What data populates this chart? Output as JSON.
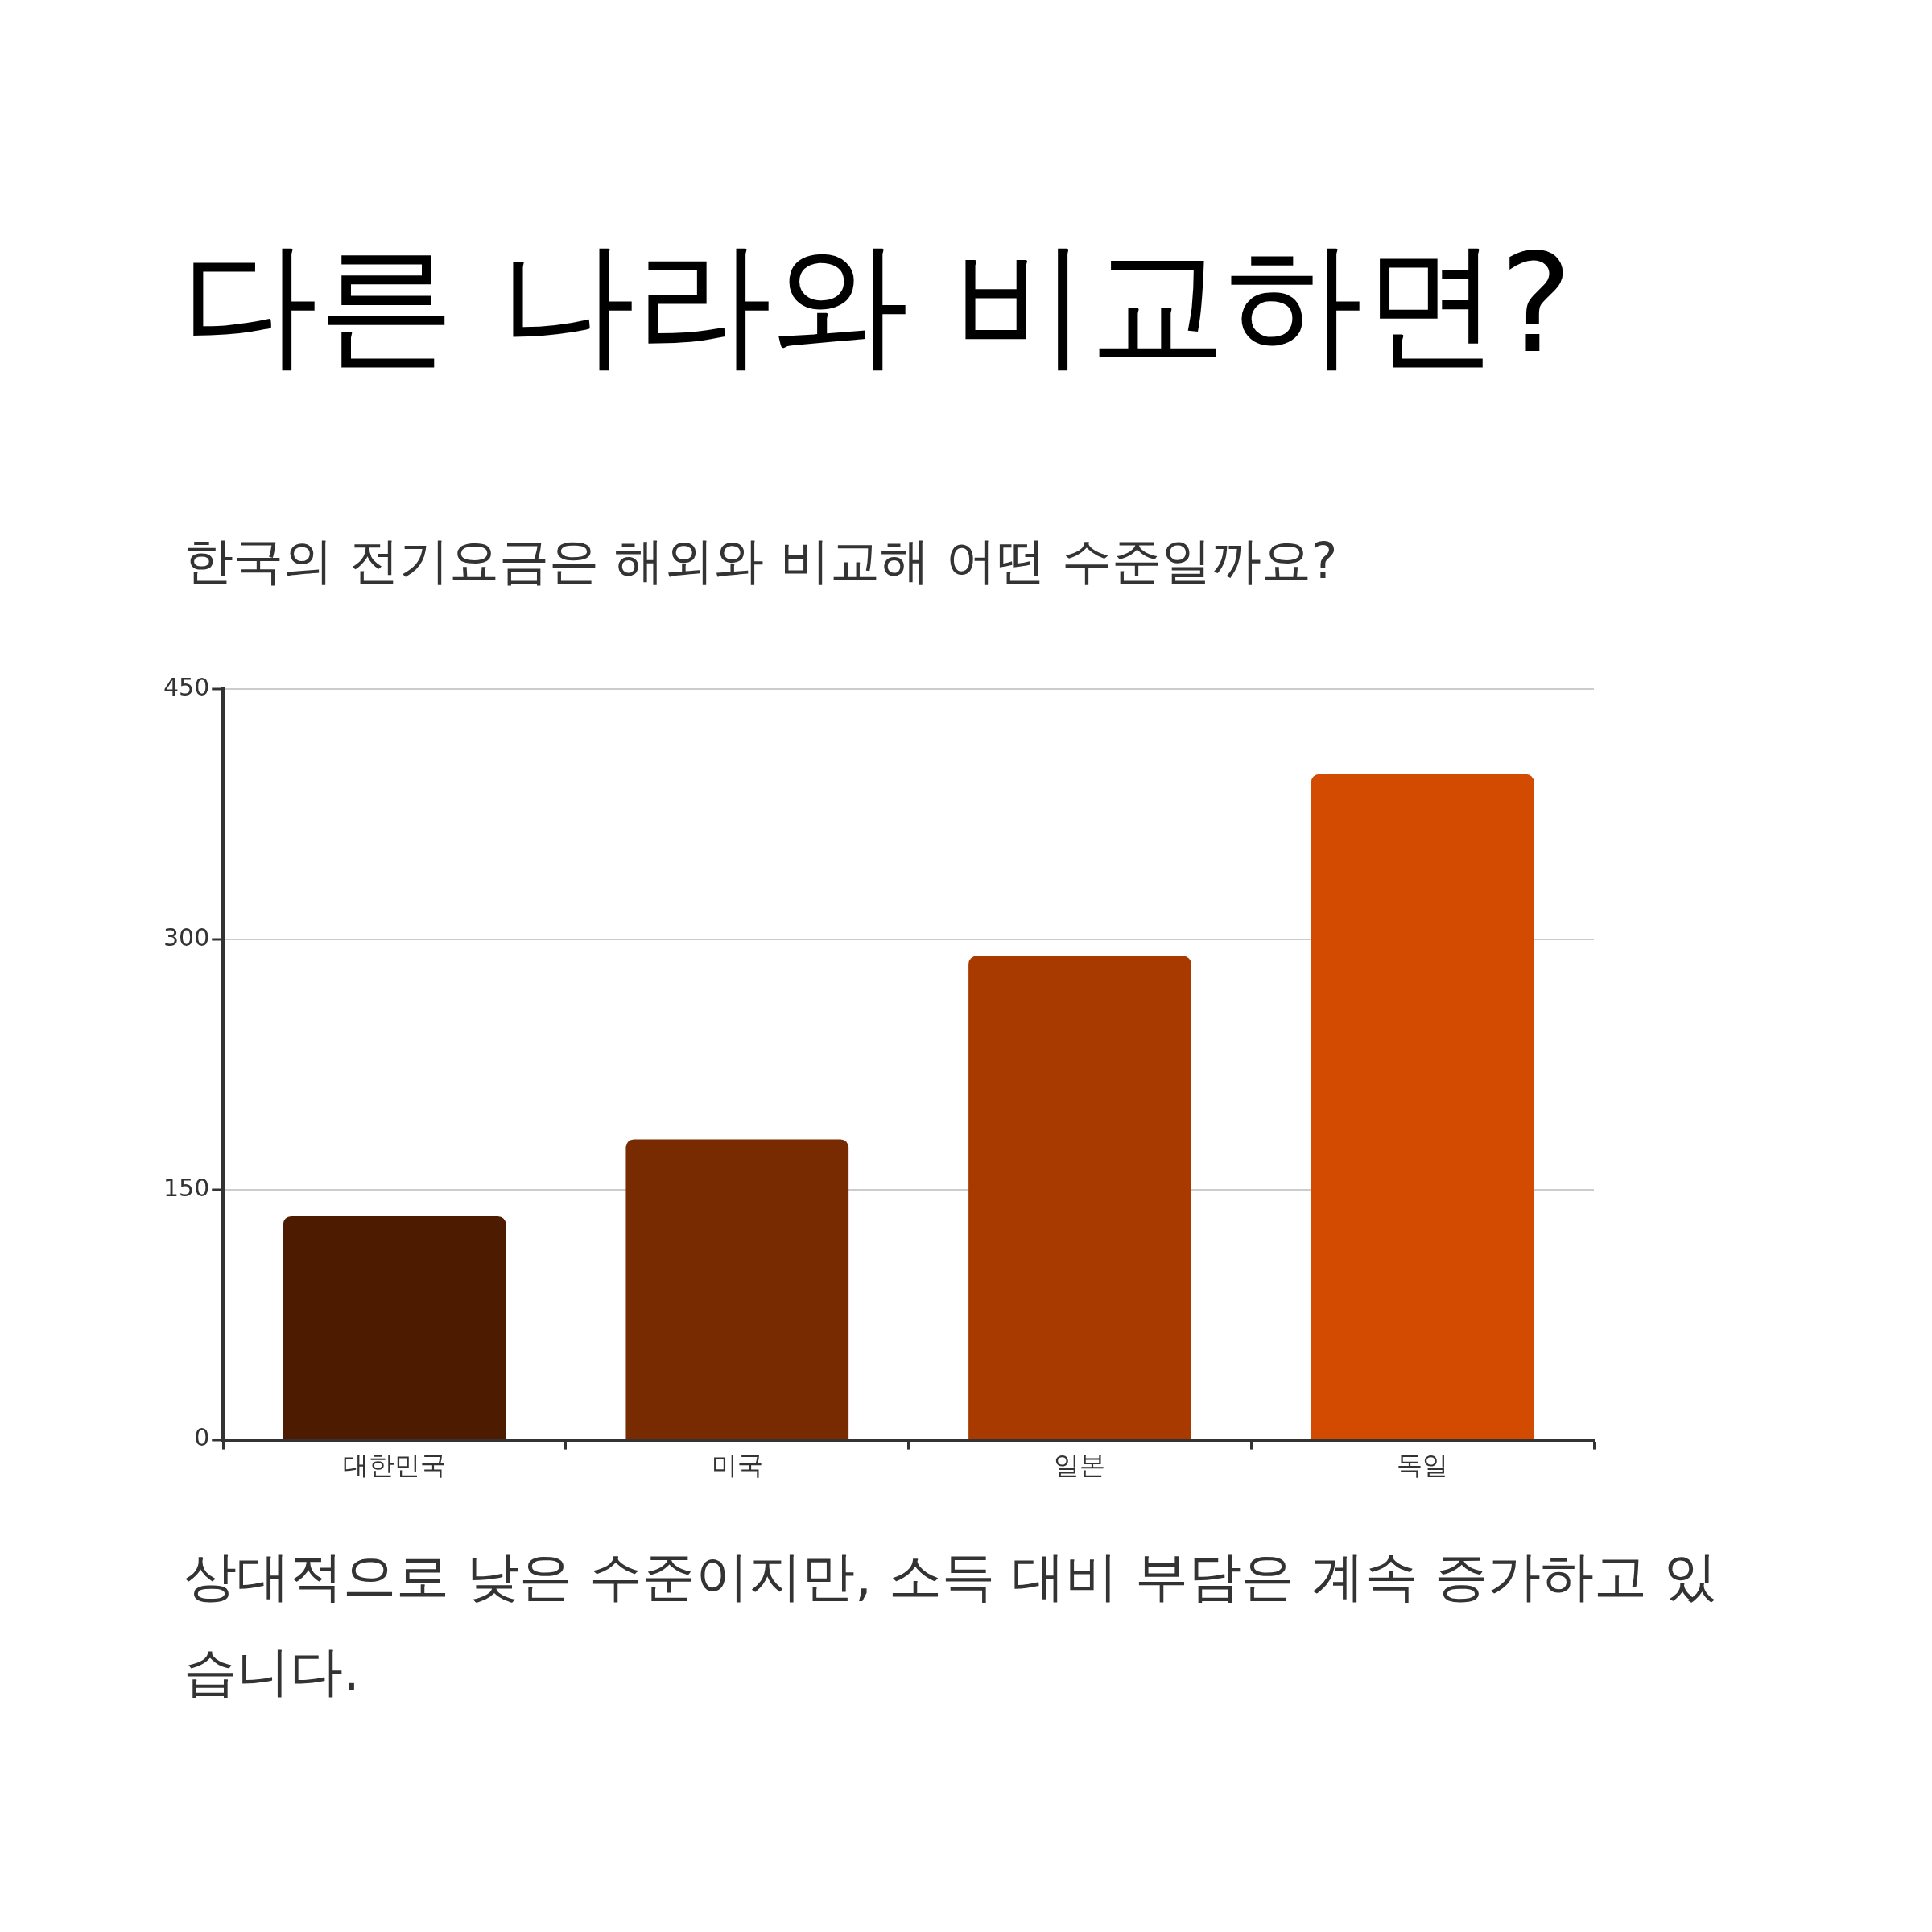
{
  "chart_data": {
    "type": "bar",
    "title": "다른 나라와 비교하면?",
    "subtitle": "한국의 전기요금은 해외와 비교해 어떤 수준일까요?",
    "categories": [
      "대한민국",
      "미국",
      "일본",
      "독일"
    ],
    "values": [
      134,
      180,
      290,
      399
    ],
    "colors": [
      "#4d1b00",
      "#782b00",
      "#a83a00",
      "#d24b00"
    ],
    "ylim": [
      0,
      450
    ],
    "yticks": [
      0,
      150,
      300,
      450
    ],
    "grid": "y",
    "annotations": [
      "상대적으로 낮은 수준이지만, 소득 대비 부담은 계속 증가하고 있습니다."
    ]
  }
}
